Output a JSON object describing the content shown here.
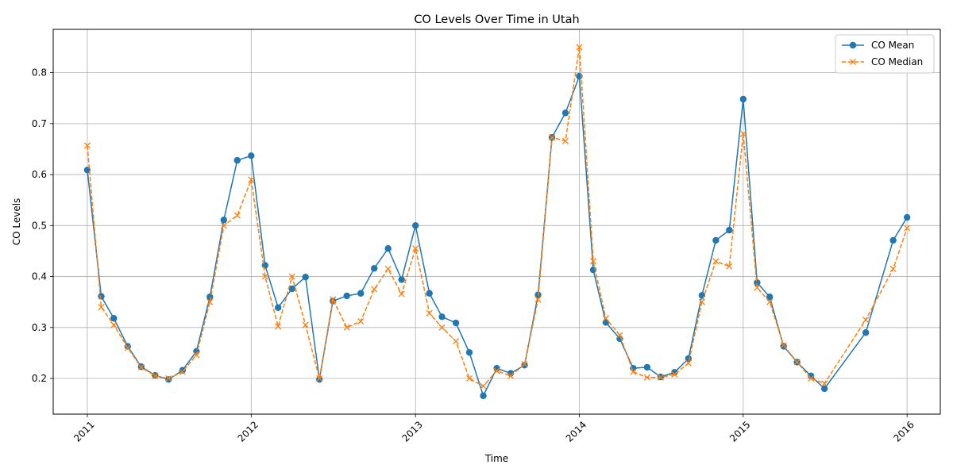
{
  "chart_data": {
    "type": "line",
    "title": "CO Levels Over Time in Utah",
    "xlabel": "Time",
    "ylabel": "CO Levels",
    "xlim": [
      "2010-10-17",
      "2016-03-15"
    ],
    "ylim": [
      0.13,
      0.885
    ],
    "x_ticks": [
      "2011",
      "2012",
      "2013",
      "2014",
      "2015",
      "2016"
    ],
    "y_ticks": [
      "0.2",
      "0.3",
      "0.4",
      "0.5",
      "0.6",
      "0.7",
      "0.8"
    ],
    "grid": true,
    "legend_position": "top-right",
    "series": [
      {
        "name": "CO Mean",
        "color": "#1f77b4",
        "style": "solid",
        "marker": "circle",
        "points": [
          [
            "2011-01-01",
            0.609
          ],
          [
            "2011-02-01",
            0.361
          ],
          [
            "2011-03-01",
            0.318
          ],
          [
            "2011-04-01",
            0.263
          ],
          [
            "2011-05-01",
            0.223
          ],
          [
            "2011-06-01",
            0.206
          ],
          [
            "2011-07-01",
            0.198
          ],
          [
            "2011-08-01",
            0.216
          ],
          [
            "2011-09-01",
            0.253
          ],
          [
            "2011-10-01",
            0.36
          ],
          [
            "2011-11-01",
            0.511
          ],
          [
            "2011-12-01",
            0.628
          ],
          [
            "2012-01-01",
            0.637
          ],
          [
            "2012-02-01",
            0.422
          ],
          [
            "2012-03-01",
            0.339
          ],
          [
            "2012-04-01",
            0.376
          ],
          [
            "2012-05-01",
            0.399
          ],
          [
            "2012-06-01",
            0.198
          ],
          [
            "2012-07-01",
            0.352
          ],
          [
            "2012-08-01",
            0.362
          ],
          [
            "2012-09-01",
            0.367
          ],
          [
            "2012-10-01",
            0.416
          ],
          [
            "2012-11-01",
            0.455
          ],
          [
            "2012-12-01",
            0.394
          ],
          [
            "2013-01-01",
            0.5
          ],
          [
            "2013-02-01",
            0.367
          ],
          [
            "2013-03-01",
            0.321
          ],
          [
            "2013-04-01",
            0.309
          ],
          [
            "2013-05-01",
            0.251
          ],
          [
            "2013-06-01",
            0.166
          ],
          [
            "2013-07-01",
            0.22
          ],
          [
            "2013-08-01",
            0.21
          ],
          [
            "2013-09-01",
            0.226
          ],
          [
            "2013-10-01",
            0.364
          ],
          [
            "2013-11-01",
            0.673
          ],
          [
            "2013-12-01",
            0.721
          ],
          [
            "2014-01-01",
            0.793
          ],
          [
            "2014-02-01",
            0.413
          ],
          [
            "2014-03-01",
            0.31
          ],
          [
            "2014-04-01",
            0.278
          ],
          [
            "2014-05-01",
            0.22
          ],
          [
            "2014-06-01",
            0.222
          ],
          [
            "2014-07-01",
            0.203
          ],
          [
            "2014-08-01",
            0.212
          ],
          [
            "2014-09-01",
            0.239
          ],
          [
            "2014-10-01",
            0.363
          ],
          [
            "2014-11-01",
            0.471
          ],
          [
            "2014-12-01",
            0.491
          ],
          [
            "2015-01-01",
            0.748
          ],
          [
            "2015-02-01",
            0.388
          ],
          [
            "2015-03-01",
            0.36
          ],
          [
            "2015-04-01",
            0.263
          ],
          [
            "2015-05-01",
            0.232
          ],
          [
            "2015-06-01",
            0.205
          ],
          [
            "2015-07-01",
            0.18
          ],
          [
            "2015-10-01",
            0.29
          ],
          [
            "2015-12-01",
            0.471
          ],
          [
            "2016-01-01",
            0.516
          ]
        ]
      },
      {
        "name": "CO Median",
        "color": "#ff7f0e",
        "style": "dashed",
        "marker": "x",
        "points": [
          [
            "2011-01-01",
            0.657
          ],
          [
            "2011-02-01",
            0.34
          ],
          [
            "2011-03-01",
            0.305
          ],
          [
            "2011-04-01",
            0.26
          ],
          [
            "2011-05-01",
            0.222
          ],
          [
            "2011-06-01",
            0.205
          ],
          [
            "2011-07-01",
            0.2
          ],
          [
            "2011-08-01",
            0.213
          ],
          [
            "2011-09-01",
            0.246
          ],
          [
            "2011-10-01",
            0.35
          ],
          [
            "2011-11-01",
            0.5
          ],
          [
            "2011-12-01",
            0.52
          ],
          [
            "2012-01-01",
            0.59
          ],
          [
            "2012-02-01",
            0.4
          ],
          [
            "2012-03-01",
            0.302
          ],
          [
            "2012-04-01",
            0.4
          ],
          [
            "2012-05-01",
            0.305
          ],
          [
            "2012-06-01",
            0.2
          ],
          [
            "2012-07-01",
            0.355
          ],
          [
            "2012-08-01",
            0.3
          ],
          [
            "2012-09-01",
            0.312
          ],
          [
            "2012-10-01",
            0.375
          ],
          [
            "2012-11-01",
            0.415
          ],
          [
            "2012-12-01",
            0.366
          ],
          [
            "2013-01-01",
            0.455
          ],
          [
            "2013-02-01",
            0.328
          ],
          [
            "2013-03-01",
            0.3
          ],
          [
            "2013-04-01",
            0.273
          ],
          [
            "2013-05-01",
            0.2
          ],
          [
            "2013-06-01",
            0.185
          ],
          [
            "2013-07-01",
            0.215
          ],
          [
            "2013-08-01",
            0.205
          ],
          [
            "2013-09-01",
            0.228
          ],
          [
            "2013-10-01",
            0.355
          ],
          [
            "2013-11-01",
            0.673
          ],
          [
            "2013-12-01",
            0.666
          ],
          [
            "2014-01-01",
            0.85
          ],
          [
            "2014-02-01",
            0.43
          ],
          [
            "2014-03-01",
            0.318
          ],
          [
            "2014-04-01",
            0.285
          ],
          [
            "2014-05-01",
            0.213
          ],
          [
            "2014-06-01",
            0.202
          ],
          [
            "2014-07-01",
            0.202
          ],
          [
            "2014-08-01",
            0.208
          ],
          [
            "2014-09-01",
            0.23
          ],
          [
            "2014-10-01",
            0.35
          ],
          [
            "2014-11-01",
            0.43
          ],
          [
            "2014-12-01",
            0.42
          ],
          [
            "2015-01-01",
            0.68
          ],
          [
            "2015-02-01",
            0.378
          ],
          [
            "2015-03-01",
            0.35
          ],
          [
            "2015-04-01",
            0.265
          ],
          [
            "2015-05-01",
            0.232
          ],
          [
            "2015-06-01",
            0.2
          ],
          [
            "2015-07-01",
            0.19
          ],
          [
            "2015-10-01",
            0.315
          ],
          [
            "2015-12-01",
            0.415
          ],
          [
            "2016-01-01",
            0.495
          ]
        ]
      }
    ]
  }
}
